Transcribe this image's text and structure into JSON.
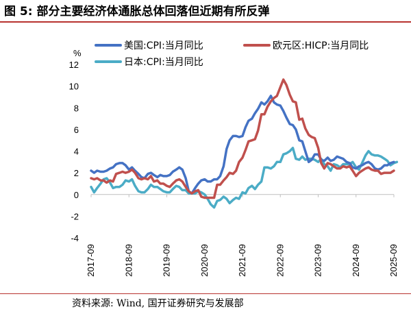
{
  "figure": {
    "title": "图 5:  部分主要经济体通胀总体回落但近期有所反弹",
    "source": "资料来源:  Wind, 国开证券研究与发展部"
  },
  "colors": {
    "us": "#4472c4",
    "eu": "#c0504d",
    "jp": "#4bacc6",
    "rule": "#b8322e"
  },
  "chart_data": {
    "type": "line",
    "title": "",
    "xlabel": "",
    "ylabel": "%",
    "ylim": [
      -4,
      12
    ],
    "yticks": [
      "-4",
      "-2",
      "0",
      "2",
      "4",
      "6",
      "8",
      "10",
      "12"
    ],
    "categories": [
      "2017-09",
      "2018-09",
      "2019-09",
      "2020-09",
      "2021-09",
      "2022-09",
      "2023-09",
      "2024-09",
      "2025-09"
    ],
    "x_range": [
      2017.67,
      2025.75
    ],
    "legend": "top-left",
    "series": [
      {
        "name": "美国:CPI:当月同比",
        "color": "#4472c4",
        "points": [
          [
            2017.67,
            2.2
          ],
          [
            2017.75,
            2.0
          ],
          [
            2017.83,
            2.2
          ],
          [
            2017.92,
            2.1
          ],
          [
            2018.0,
            2.1
          ],
          [
            2018.08,
            2.2
          ],
          [
            2018.17,
            2.4
          ],
          [
            2018.25,
            2.5
          ],
          [
            2018.33,
            2.8
          ],
          [
            2018.42,
            2.9
          ],
          [
            2018.5,
            2.9
          ],
          [
            2018.58,
            2.7
          ],
          [
            2018.67,
            2.3
          ],
          [
            2018.75,
            2.5
          ],
          [
            2018.83,
            2.2
          ],
          [
            2018.92,
            1.9
          ],
          [
            2019.0,
            1.6
          ],
          [
            2019.08,
            1.5
          ],
          [
            2019.17,
            1.9
          ],
          [
            2019.25,
            2.0
          ],
          [
            2019.33,
            1.8
          ],
          [
            2019.42,
            1.6
          ],
          [
            2019.5,
            1.8
          ],
          [
            2019.58,
            1.7
          ],
          [
            2019.67,
            1.7
          ],
          [
            2019.75,
            1.8
          ],
          [
            2019.83,
            2.1
          ],
          [
            2019.92,
            2.3
          ],
          [
            2020.0,
            2.5
          ],
          [
            2020.08,
            2.3
          ],
          [
            2020.17,
            1.5
          ],
          [
            2020.25,
            0.3
          ],
          [
            2020.33,
            0.1
          ],
          [
            2020.42,
            0.6
          ],
          [
            2020.5,
            1.0
          ],
          [
            2020.58,
            1.3
          ],
          [
            2020.67,
            1.4
          ],
          [
            2020.75,
            1.2
          ],
          [
            2020.83,
            1.2
          ],
          [
            2020.92,
            1.4
          ],
          [
            2021.0,
            1.4
          ],
          [
            2021.08,
            1.7
          ],
          [
            2021.17,
            2.6
          ],
          [
            2021.25,
            4.2
          ],
          [
            2021.33,
            5.0
          ],
          [
            2021.42,
            5.4
          ],
          [
            2021.5,
            5.4
          ],
          [
            2021.58,
            5.3
          ],
          [
            2021.67,
            5.4
          ],
          [
            2021.75,
            6.2
          ],
          [
            2021.83,
            6.8
          ],
          [
            2021.92,
            7.0
          ],
          [
            2022.0,
            7.5
          ],
          [
            2022.08,
            7.9
          ],
          [
            2022.17,
            8.5
          ],
          [
            2022.25,
            8.3
          ],
          [
            2022.33,
            8.6
          ],
          [
            2022.42,
            9.1
          ],
          [
            2022.5,
            8.5
          ],
          [
            2022.58,
            8.3
          ],
          [
            2022.67,
            8.2
          ],
          [
            2022.75,
            7.7
          ],
          [
            2022.83,
            7.1
          ],
          [
            2022.92,
            6.5
          ],
          [
            2023.0,
            6.4
          ],
          [
            2023.08,
            6.0
          ],
          [
            2023.17,
            5.0
          ],
          [
            2023.25,
            4.9
          ],
          [
            2023.33,
            4.0
          ],
          [
            2023.42,
            3.0
          ],
          [
            2023.5,
            3.2
          ],
          [
            2023.58,
            3.7
          ],
          [
            2023.67,
            3.7
          ],
          [
            2023.75,
            3.2
          ],
          [
            2023.83,
            3.1
          ],
          [
            2023.92,
            3.4
          ],
          [
            2024.0,
            3.1
          ],
          [
            2024.08,
            3.2
          ],
          [
            2024.17,
            3.5
          ],
          [
            2024.25,
            3.4
          ],
          [
            2024.33,
            3.3
          ],
          [
            2024.42,
            3.0
          ],
          [
            2024.5,
            2.9
          ],
          [
            2024.58,
            2.5
          ],
          [
            2024.67,
            2.4
          ],
          [
            2024.75,
            2.6
          ],
          [
            2024.83,
            2.7
          ],
          [
            2024.92,
            2.9
          ],
          [
            2025.0,
            3.0
          ],
          [
            2025.08,
            2.8
          ],
          [
            2025.17,
            2.4
          ],
          [
            2025.25,
            2.3
          ],
          [
            2025.33,
            2.4
          ],
          [
            2025.42,
            2.7
          ],
          [
            2025.5,
            2.7
          ],
          [
            2025.58,
            2.9
          ],
          [
            2025.67,
            3.0
          ]
        ]
      },
      {
        "name": "欧元区:HICP:当月同比",
        "color": "#c0504d",
        "points": [
          [
            2017.67,
            1.5
          ],
          [
            2017.75,
            1.4
          ],
          [
            2017.83,
            1.5
          ],
          [
            2017.92,
            1.3
          ],
          [
            2018.0,
            1.3
          ],
          [
            2018.08,
            1.1
          ],
          [
            2018.17,
            1.3
          ],
          [
            2018.25,
            1.2
          ],
          [
            2018.33,
            1.9
          ],
          [
            2018.42,
            2.0
          ],
          [
            2018.5,
            2.1
          ],
          [
            2018.58,
            2.0
          ],
          [
            2018.67,
            2.1
          ],
          [
            2018.75,
            2.3
          ],
          [
            2018.83,
            2.0
          ],
          [
            2018.92,
            1.5
          ],
          [
            2019.0,
            1.4
          ],
          [
            2019.08,
            1.5
          ],
          [
            2019.17,
            1.4
          ],
          [
            2019.25,
            1.7
          ],
          [
            2019.33,
            1.2
          ],
          [
            2019.42,
            1.3
          ],
          [
            2019.5,
            1.0
          ],
          [
            2019.58,
            1.0
          ],
          [
            2019.67,
            0.8
          ],
          [
            2019.75,
            0.7
          ],
          [
            2019.83,
            1.0
          ],
          [
            2019.92,
            1.3
          ],
          [
            2020.0,
            1.4
          ],
          [
            2020.08,
            1.2
          ],
          [
            2020.17,
            0.7
          ],
          [
            2020.25,
            0.3
          ],
          [
            2020.33,
            0.1
          ],
          [
            2020.42,
            0.3
          ],
          [
            2020.5,
            0.4
          ],
          [
            2020.58,
            -0.2
          ],
          [
            2020.67,
            -0.3
          ],
          [
            2020.75,
            -0.3
          ],
          [
            2020.83,
            -0.3
          ],
          [
            2020.92,
            -0.3
          ],
          [
            2021.0,
            0.9
          ],
          [
            2021.08,
            0.9
          ],
          [
            2021.17,
            1.3
          ],
          [
            2021.25,
            1.6
          ],
          [
            2021.33,
            2.0
          ],
          [
            2021.42,
            1.9
          ],
          [
            2021.5,
            2.2
          ],
          [
            2021.58,
            3.0
          ],
          [
            2021.67,
            3.4
          ],
          [
            2021.75,
            4.1
          ],
          [
            2021.83,
            4.9
          ],
          [
            2021.92,
            5.0
          ],
          [
            2022.0,
            5.1
          ],
          [
            2022.08,
            5.9
          ],
          [
            2022.17,
            7.4
          ],
          [
            2022.25,
            7.4
          ],
          [
            2022.33,
            8.1
          ],
          [
            2022.42,
            8.6
          ],
          [
            2022.5,
            8.9
          ],
          [
            2022.58,
            9.1
          ],
          [
            2022.67,
            9.9
          ],
          [
            2022.75,
            10.6
          ],
          [
            2022.83,
            10.1
          ],
          [
            2022.92,
            9.2
          ],
          [
            2023.0,
            8.6
          ],
          [
            2023.08,
            8.5
          ],
          [
            2023.17,
            6.9
          ],
          [
            2023.25,
            7.0
          ],
          [
            2023.33,
            6.1
          ],
          [
            2023.42,
            5.5
          ],
          [
            2023.5,
            5.3
          ],
          [
            2023.58,
            5.2
          ],
          [
            2023.67,
            4.3
          ],
          [
            2023.75,
            2.9
          ],
          [
            2023.83,
            2.4
          ],
          [
            2023.92,
            2.9
          ],
          [
            2024.0,
            2.8
          ],
          [
            2024.08,
            2.6
          ],
          [
            2024.17,
            2.4
          ],
          [
            2024.25,
            2.4
          ],
          [
            2024.33,
            2.6
          ],
          [
            2024.42,
            2.5
          ],
          [
            2024.5,
            2.6
          ],
          [
            2024.58,
            2.2
          ],
          [
            2024.67,
            1.7
          ],
          [
            2024.75,
            2.0
          ],
          [
            2024.83,
            2.2
          ],
          [
            2024.92,
            2.4
          ],
          [
            2025.0,
            2.5
          ],
          [
            2025.08,
            2.3
          ],
          [
            2025.17,
            2.2
          ],
          [
            2025.25,
            2.2
          ],
          [
            2025.33,
            1.9
          ],
          [
            2025.42,
            2.0
          ],
          [
            2025.5,
            2.0
          ],
          [
            2025.58,
            2.0
          ],
          [
            2025.67,
            2.2
          ]
        ]
      },
      {
        "name": "日本:CPI:当月同比",
        "color": "#4bacc6",
        "points": [
          [
            2017.67,
            0.7
          ],
          [
            2017.75,
            0.2
          ],
          [
            2017.83,
            0.6
          ],
          [
            2017.92,
            1.0
          ],
          [
            2018.0,
            1.4
          ],
          [
            2018.08,
            1.5
          ],
          [
            2018.17,
            1.1
          ],
          [
            2018.25,
            0.6
          ],
          [
            2018.33,
            0.7
          ],
          [
            2018.42,
            0.7
          ],
          [
            2018.5,
            0.9
          ],
          [
            2018.58,
            1.3
          ],
          [
            2018.67,
            1.2
          ],
          [
            2018.75,
            1.4
          ],
          [
            2018.83,
            0.8
          ],
          [
            2018.92,
            0.3
          ],
          [
            2019.0,
            0.2
          ],
          [
            2019.08,
            0.2
          ],
          [
            2019.17,
            0.5
          ],
          [
            2019.25,
            0.9
          ],
          [
            2019.33,
            0.7
          ],
          [
            2019.42,
            0.7
          ],
          [
            2019.5,
            0.5
          ],
          [
            2019.58,
            0.3
          ],
          [
            2019.67,
            0.2
          ],
          [
            2019.75,
            0.2
          ],
          [
            2019.83,
            0.5
          ],
          [
            2019.92,
            0.8
          ],
          [
            2020.0,
            0.7
          ],
          [
            2020.08,
            0.4
          ],
          [
            2020.17,
            0.4
          ],
          [
            2020.25,
            0.1
          ],
          [
            2020.33,
            0.1
          ],
          [
            2020.42,
            0.1
          ],
          [
            2020.5,
            0.3
          ],
          [
            2020.58,
            0.2
          ],
          [
            2020.67,
            0.0
          ],
          [
            2020.75,
            -0.4
          ],
          [
            2020.83,
            -0.9
          ],
          [
            2020.92,
            -1.2
          ],
          [
            2021.0,
            -0.6
          ],
          [
            2021.08,
            -0.5
          ],
          [
            2021.17,
            -0.2
          ],
          [
            2021.25,
            -0.4
          ],
          [
            2021.33,
            -0.8
          ],
          [
            2021.42,
            -0.5
          ],
          [
            2021.5,
            -0.3
          ],
          [
            2021.58,
            -0.4
          ],
          [
            2021.67,
            0.2
          ],
          [
            2021.75,
            0.1
          ],
          [
            2021.83,
            0.6
          ],
          [
            2021.92,
            0.8
          ],
          [
            2022.0,
            0.5
          ],
          [
            2022.08,
            0.9
          ],
          [
            2022.17,
            1.2
          ],
          [
            2022.25,
            2.5
          ],
          [
            2022.33,
            2.5
          ],
          [
            2022.42,
            2.4
          ],
          [
            2022.5,
            2.6
          ],
          [
            2022.58,
            3.0
          ],
          [
            2022.67,
            3.0
          ],
          [
            2022.75,
            3.7
          ],
          [
            2022.83,
            3.8
          ],
          [
            2022.92,
            4.0
          ],
          [
            2023.0,
            4.3
          ],
          [
            2023.08,
            3.3
          ],
          [
            2023.17,
            3.2
          ],
          [
            2023.25,
            3.5
          ],
          [
            2023.33,
            3.2
          ],
          [
            2023.42,
            3.3
          ],
          [
            2023.5,
            3.3
          ],
          [
            2023.58,
            3.2
          ],
          [
            2023.67,
            3.0
          ],
          [
            2023.75,
            3.3
          ],
          [
            2023.83,
            2.8
          ],
          [
            2023.92,
            2.6
          ],
          [
            2024.0,
            2.2
          ],
          [
            2024.08,
            2.8
          ],
          [
            2024.17,
            2.7
          ],
          [
            2024.25,
            2.5
          ],
          [
            2024.33,
            2.8
          ],
          [
            2024.42,
            2.8
          ],
          [
            2024.5,
            2.8
          ],
          [
            2024.58,
            3.0
          ],
          [
            2024.67,
            2.5
          ],
          [
            2024.75,
            2.3
          ],
          [
            2024.83,
            2.9
          ],
          [
            2024.92,
            3.6
          ],
          [
            2025.0,
            4.0
          ],
          [
            2025.08,
            3.7
          ],
          [
            2025.17,
            3.6
          ],
          [
            2025.25,
            3.6
          ],
          [
            2025.33,
            3.5
          ],
          [
            2025.42,
            3.3
          ],
          [
            2025.5,
            3.1
          ],
          [
            2025.58,
            2.7
          ],
          [
            2025.67,
            2.9
          ],
          [
            2025.75,
            3.0
          ]
        ]
      }
    ]
  }
}
